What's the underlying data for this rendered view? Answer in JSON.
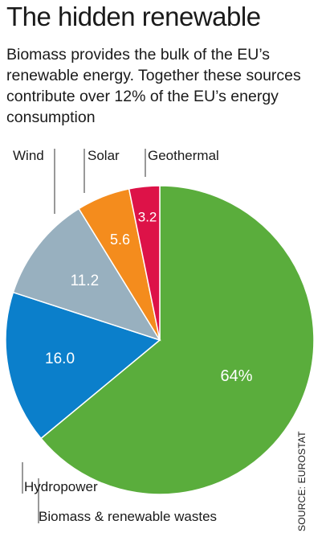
{
  "title": "The hidden renewable",
  "subtitle": "Biomass provides the bulk of the EU’s renewable energy. Together these sources contribute over 12% of the EU’s energy consumption",
  "source": "SOURCE: EUROSTAT",
  "chart_data": {
    "type": "pie",
    "title": "The hidden renewable",
    "subtitle": "Biomass provides the bulk of the EU’s renewable energy. Together these sources contribute over 12% of the EU’s energy consumption",
    "unit": "%",
    "slices": [
      {
        "label": "Biomass & renewable wastes",
        "value": 64,
        "value_label": "64%",
        "color": "#5aad3c"
      },
      {
        "label": "Hydropower",
        "value": 16.0,
        "value_label": "16.0",
        "color": "#0b7fcb"
      },
      {
        "label": "Wind",
        "value": 11.2,
        "value_label": "11.2",
        "color": "#98b0bf"
      },
      {
        "label": "Solar",
        "value": 5.6,
        "value_label": "5.6",
        "color": "#f48c1d"
      },
      {
        "label": "Geothermal",
        "value": 3.2,
        "value_label": "3.2",
        "color": "#dd1248"
      }
    ],
    "legend": "callout labels"
  }
}
